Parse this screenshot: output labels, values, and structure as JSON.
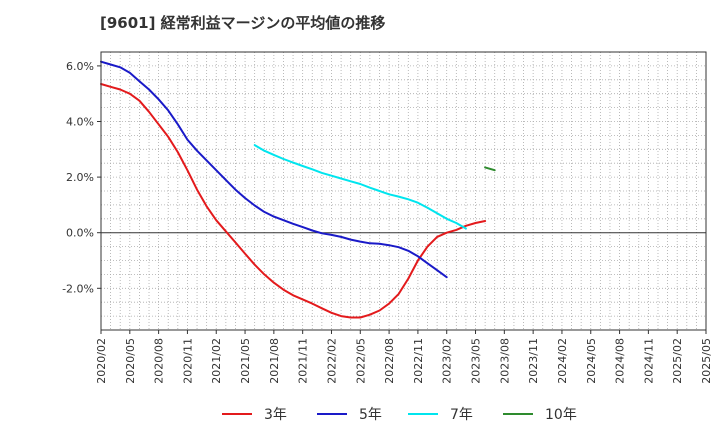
{
  "chart_data": {
    "type": "line",
    "title": "[9601]  経常利益マージンの平均値の推移",
    "xlabel": "",
    "ylabel": "",
    "ylim": [
      -3.5,
      6.5
    ],
    "y_ticks": [
      6,
      4,
      2,
      0,
      -2
    ],
    "y_tick_labels": [
      "6.0%",
      "4.0%",
      "2.0%",
      "0.0%",
      "-2.0%"
    ],
    "x_tick_labels": [
      "2020/02",
      "2020/05",
      "2020/08",
      "2020/11",
      "2021/02",
      "2021/05",
      "2021/08",
      "2021/11",
      "2022/02",
      "2022/05",
      "2022/08",
      "2022/11",
      "2023/02",
      "2023/05",
      "2023/08",
      "2023/11",
      "2024/02",
      "2024/05",
      "2024/08",
      "2024/11",
      "2025/02",
      "2025/05"
    ],
    "grid": "dotted",
    "legend_position": "bottom",
    "series": [
      {
        "name": "3年",
        "color": "#e31a1c",
        "start_index": 0,
        "values": [
          5.35,
          5.25,
          5.15,
          5.0,
          4.75,
          4.35,
          3.9,
          3.45,
          2.9,
          2.25,
          1.55,
          0.95,
          0.45,
          0.05,
          -0.35,
          -0.75,
          -1.15,
          -1.5,
          -1.8,
          -2.05,
          -2.25,
          -2.4,
          -2.55,
          -2.72,
          -2.88,
          -3.0,
          -3.05,
          -3.05,
          -2.95,
          -2.8,
          -2.55,
          -2.2,
          -1.65,
          -1.0,
          -0.5,
          -0.15,
          0.0,
          0.1,
          0.25,
          0.35,
          0.42
        ]
      },
      {
        "name": "5年",
        "color": "#1a1ac8",
        "start_index": 0,
        "values": [
          6.15,
          6.05,
          5.95,
          5.75,
          5.45,
          5.15,
          4.8,
          4.4,
          3.9,
          3.35,
          2.95,
          2.6,
          2.25,
          1.9,
          1.55,
          1.25,
          0.98,
          0.75,
          0.58,
          0.45,
          0.32,
          0.2,
          0.08,
          -0.02,
          -0.08,
          -0.15,
          -0.25,
          -0.32,
          -0.38,
          -0.4,
          -0.45,
          -0.52,
          -0.65,
          -0.85,
          -1.1,
          -1.35,
          -1.6
        ]
      },
      {
        "name": "7年",
        "color": "#00e5ee",
        "start_index": 16,
        "values": [
          3.15,
          2.95,
          2.8,
          2.65,
          2.52,
          2.4,
          2.28,
          2.15,
          2.05,
          1.95,
          1.85,
          1.75,
          1.62,
          1.5,
          1.38,
          1.3,
          1.2,
          1.08,
          0.9,
          0.7,
          0.5,
          0.35,
          0.15
        ]
      },
      {
        "name": "10年",
        "color": "#2e8b2e",
        "start_index": 40,
        "values": [
          2.35,
          2.25
        ]
      }
    ]
  }
}
